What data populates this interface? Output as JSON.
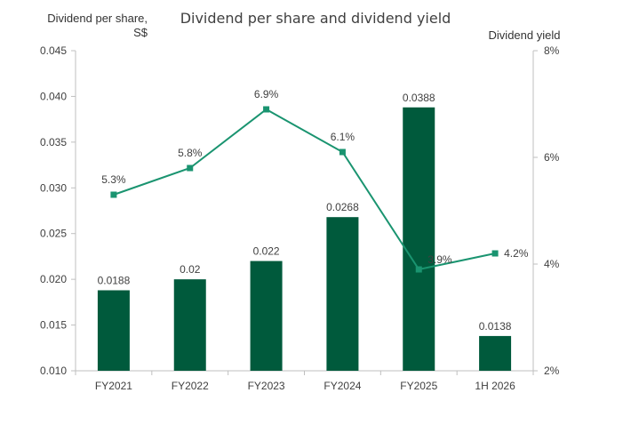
{
  "chart_data": {
    "type": "bar",
    "title": "Dividend per share and dividend yield",
    "ylabel_left": [
      "Dividend per share,",
      "S$"
    ],
    "ylabel_right": "Dividend yield",
    "categories": [
      "FY2021",
      "FY2022",
      "FY2023",
      "FY2024",
      "FY2025",
      "1H 2026"
    ],
    "series": [
      {
        "name": "Dividend per share",
        "type": "bar",
        "axis": "left",
        "values": [
          0.0188,
          0.02,
          0.022,
          0.0268,
          0.0388,
          0.0138
        ],
        "labels": [
          "0.0188",
          "0.02",
          "0.022",
          "0.0268",
          "0.0388",
          "0.0138"
        ]
      },
      {
        "name": "Dividend yield",
        "type": "line",
        "axis": "right",
        "values": [
          5.3,
          5.8,
          6.9,
          6.1,
          3.9,
          4.2
        ],
        "labels": [
          "5.3%",
          "5.8%",
          "6.9%",
          "6.1%",
          "3.9%",
          "4.2%"
        ]
      }
    ],
    "ylim_left": [
      0.01,
      0.045
    ],
    "yticks_left": [
      "0.010",
      "0.015",
      "0.020",
      "0.025",
      "0.030",
      "0.035",
      "0.040",
      "0.045"
    ],
    "ylim_right": [
      2,
      8
    ],
    "yticks_right": [
      "2%",
      "4%",
      "6%",
      "8%"
    ],
    "grid": false,
    "legend": "none",
    "colors": {
      "bar": "#005a3c",
      "line": "#1a9470",
      "axis": "#bfbfbf"
    }
  }
}
